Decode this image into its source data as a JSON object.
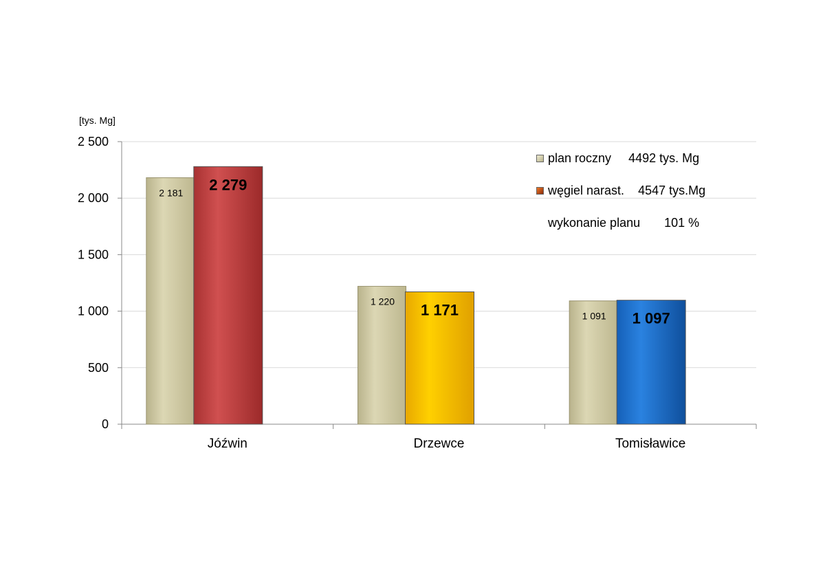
{
  "chart_data": {
    "type": "bar",
    "ylabel": "[tys. Mg]",
    "ylim": [
      0,
      2500
    ],
    "yticks": [
      0,
      500,
      1000,
      1500,
      2000,
      2500
    ],
    "ytick_labels": [
      "0",
      "500",
      "1 000",
      "1 500",
      "2 000",
      "2 500"
    ],
    "grid": true,
    "categories": [
      "Jóźwin",
      "Drzewce",
      "Tomisławice"
    ],
    "series": [
      {
        "name": "plan roczny",
        "values": [
          2181,
          1220,
          1091
        ],
        "labels": [
          "2 181",
          "1 220",
          "1 091"
        ],
        "colors": [
          "#cfc9a1",
          "#cfc9a1",
          "#cfc9a1"
        ]
      },
      {
        "name": "węgiel narast.",
        "values": [
          2279,
          1171,
          1097
        ],
        "labels": [
          "2 279",
          "1 171",
          "1 097"
        ],
        "colors": [
          "#c74a4a",
          "#ffc800",
          "#1f74d0"
        ]
      }
    ],
    "legend_position": "top-right"
  },
  "legend": {
    "plan_label": "plan roczny",
    "plan_value": "4492 tys. Mg",
    "coal_label": "węgiel narast.",
    "coal_value": "4547 tys.Mg",
    "exec_label": "wykonanie planu",
    "exec_value": "101 %"
  }
}
